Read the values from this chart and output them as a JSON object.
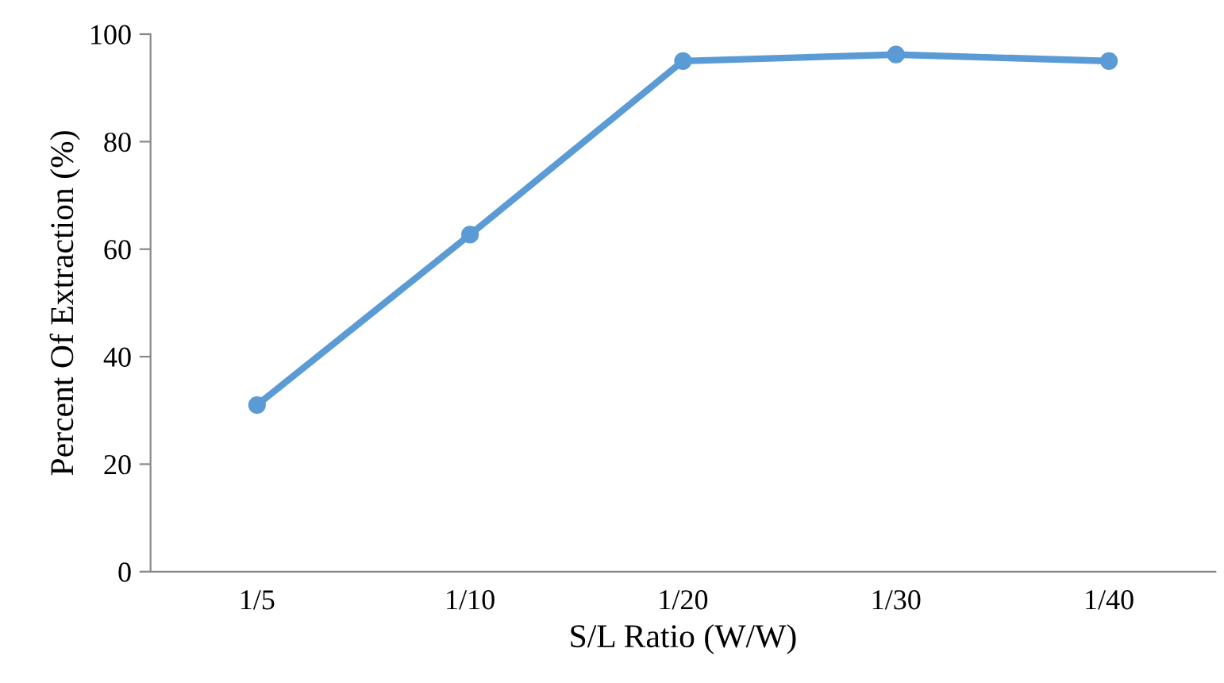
{
  "chart_data": {
    "type": "line",
    "xlabel": "S/L Ratio (W/W)",
    "ylabel": "Percent Of Extraction (%)",
    "categories": [
      "1/5",
      "1/10",
      "1/20",
      "1/30",
      "1/40"
    ],
    "series": [
      {
        "color": "#5b9bd5",
        "values": [
          31,
          62.7,
          95,
          96.2,
          95
        ]
      }
    ],
    "ylim": [
      0,
      100
    ],
    "yticks": [
      0,
      20,
      40,
      60,
      80,
      100
    ],
    "marker": "circle",
    "line_style": "solid",
    "grid": false,
    "legend": false
  }
}
